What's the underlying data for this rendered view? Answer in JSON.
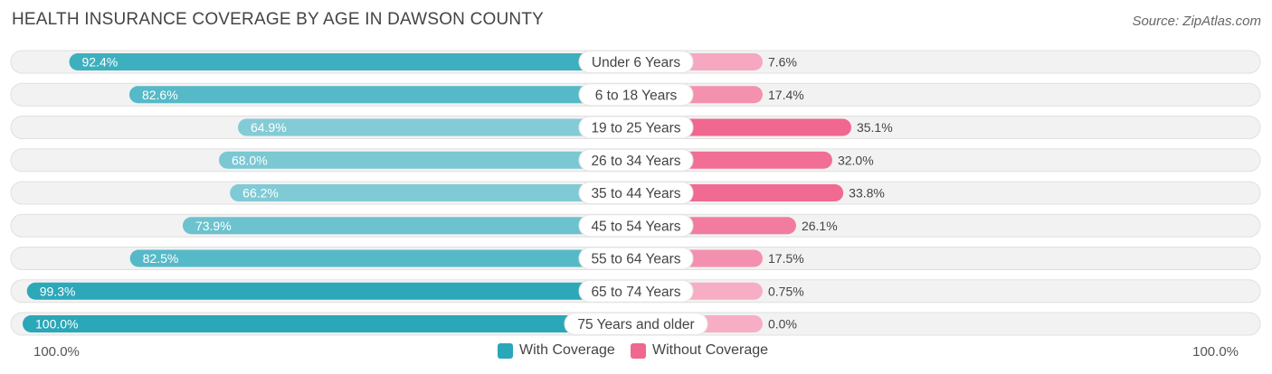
{
  "chart_data": {
    "type": "bar",
    "orientation": "horizontal-diverging",
    "title": "HEALTH INSURANCE COVERAGE BY AGE IN DAWSON COUNTY",
    "source": "Source: ZipAtlas.com",
    "categories": [
      "Under 6 Years",
      "6 to 18 Years",
      "19 to 25 Years",
      "26 to 34 Years",
      "35 to 44 Years",
      "45 to 54 Years",
      "55 to 64 Years",
      "65 to 74 Years",
      "75 Years and older"
    ],
    "series": [
      {
        "name": "With Coverage",
        "values": [
          92.4,
          82.6,
          64.9,
          68.0,
          66.2,
          73.9,
          82.5,
          99.3,
          100.0
        ],
        "labels": [
          "92.4%",
          "82.6%",
          "64.9%",
          "68.0%",
          "66.2%",
          "73.9%",
          "82.5%",
          "99.3%",
          "100.0%"
        ],
        "color": "#2aa7b8"
      },
      {
        "name": "Without Coverage",
        "values": [
          7.6,
          17.4,
          35.1,
          32.0,
          33.8,
          26.1,
          17.5,
          0.75,
          0.0
        ],
        "labels": [
          "7.6%",
          "17.4%",
          "35.1%",
          "32.0%",
          "33.8%",
          "26.1%",
          "17.5%",
          "0.75%",
          "0.0%"
        ],
        "color": "#f0678f"
      }
    ],
    "axis": {
      "left_label": "100.0%",
      "right_label": "100.0%",
      "range": [
        0,
        100
      ]
    },
    "legend": {
      "position": "bottom-center",
      "items": [
        "With Coverage",
        "Without Coverage"
      ]
    }
  }
}
